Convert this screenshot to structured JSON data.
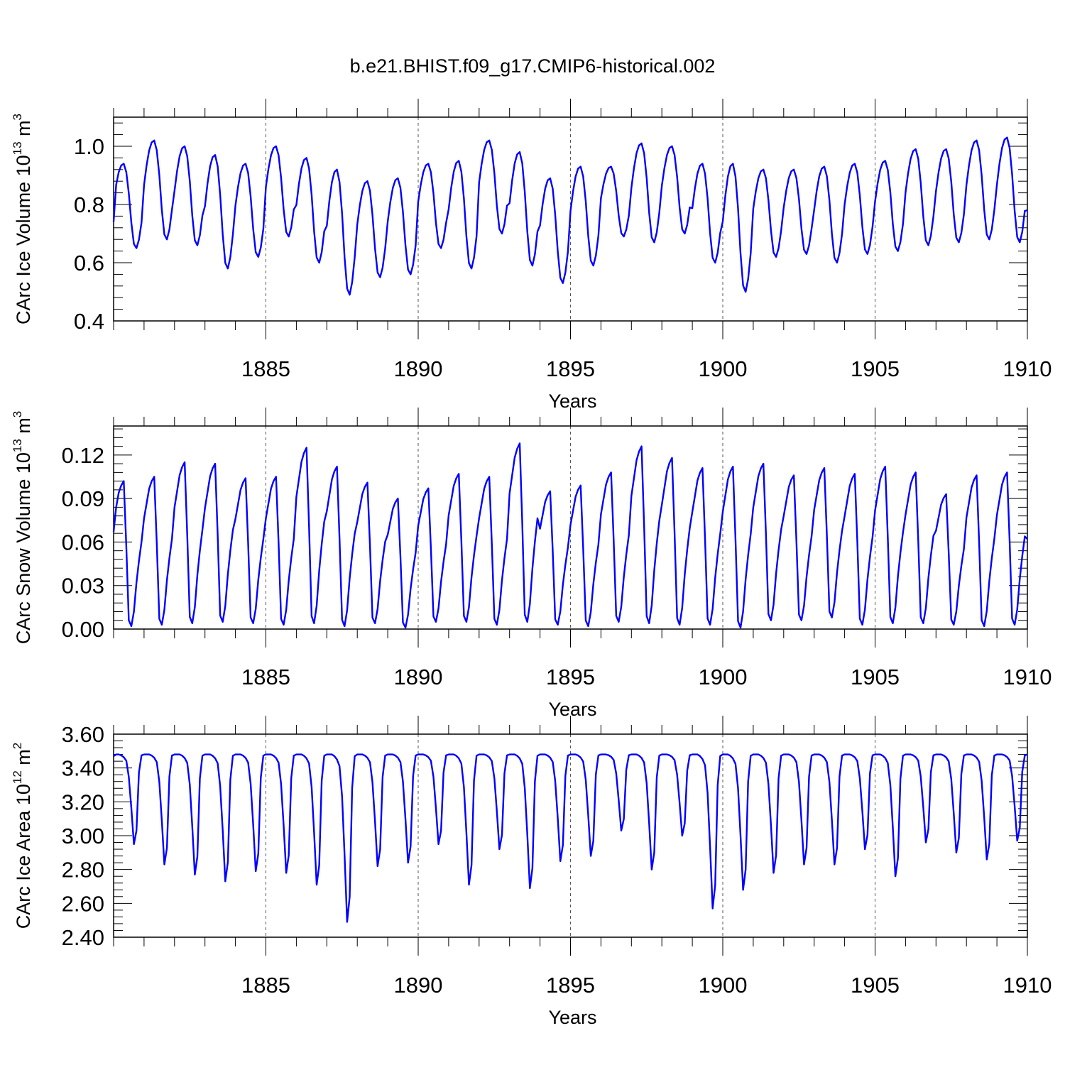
{
  "title": "b.e21.BHIST.f09_g17.CMIP6-historical.002",
  "colors": {
    "series": "#0000ff",
    "axis": "#000000",
    "grid": "#555555"
  },
  "chart_data": [
    {
      "type": "line",
      "id": "ice-volume",
      "ylabel_base": "CArc Ice Volume 10",
      "ylabel_exp": "13",
      "ylabel_unit": " m",
      "ylabel_unit_exp": "3",
      "xlabel": "Years",
      "xlim": [
        1880.0,
        1910.0
      ],
      "ylim": [
        0.4,
        1.1
      ],
      "xticks": [
        1885,
        1890,
        1895,
        1900,
        1905,
        1910
      ],
      "xtick_labels": [
        "1885",
        "1890",
        "1895",
        "1900",
        "1905",
        "1910"
      ],
      "yticks": [
        0.4,
        0.6,
        0.8,
        1.0
      ],
      "ytick_labels": [
        "0.4",
        "0.6",
        "0.8",
        "1.0"
      ],
      "grid": "dashed vertical at major x ticks",
      "series": [
        {
          "name": "CArc Ice Volume",
          "monthly_start": 1880.0,
          "annual_max": [
            0.94,
            1.02,
            1.0,
            0.97,
            0.94,
            1.0,
            0.96,
            0.92,
            0.88,
            0.89,
            0.94,
            0.95,
            1.02,
            0.98,
            0.89,
            0.93,
            0.93,
            1.01,
            1.0,
            0.94,
            0.94,
            0.92,
            0.92,
            0.93,
            0.94,
            0.95,
            0.99,
            0.99,
            1.02,
            1.03
          ],
          "annual_min": [
            0.65,
            0.68,
            0.66,
            0.58,
            0.62,
            0.69,
            0.6,
            0.49,
            0.55,
            0.56,
            0.65,
            0.58,
            0.7,
            0.59,
            0.53,
            0.59,
            0.69,
            0.67,
            0.7,
            0.6,
            0.5,
            0.62,
            0.63,
            0.6,
            0.63,
            0.64,
            0.66,
            0.67,
            0.68,
            0.67
          ],
          "start_value": 0.74,
          "end_value": 0.78
        }
      ]
    },
    {
      "type": "line",
      "id": "snow-volume",
      "ylabel_base": "CArc Snow Volume 10",
      "ylabel_exp": "13",
      "ylabel_unit": " m",
      "ylabel_unit_exp": "3",
      "xlabel": "Years",
      "xlim": [
        1880.0,
        1910.0
      ],
      "ylim": [
        0.0,
        0.14
      ],
      "xticks": [
        1885,
        1890,
        1895,
        1900,
        1905,
        1910
      ],
      "xtick_labels": [
        "1885",
        "1890",
        "1895",
        "1900",
        "1905",
        "1910"
      ],
      "yticks": [
        0.0,
        0.03,
        0.06,
        0.09,
        0.12
      ],
      "ytick_labels": [
        "0.00",
        "0.03",
        "0.06",
        "0.09",
        "0.12"
      ],
      "grid": "dashed vertical at major x ticks",
      "series": [
        {
          "name": "CArc Snow Volume",
          "monthly_start": 1880.0,
          "annual_max": [
            0.102,
            0.105,
            0.115,
            0.114,
            0.104,
            0.105,
            0.125,
            0.112,
            0.101,
            0.09,
            0.097,
            0.107,
            0.105,
            0.128,
            0.095,
            0.099,
            0.108,
            0.126,
            0.118,
            0.111,
            0.112,
            0.114,
            0.106,
            0.111,
            0.107,
            0.112,
            0.108,
            0.093,
            0.106,
            0.108
          ],
          "annual_min": [
            0.002,
            0.003,
            0.004,
            0.005,
            0.004,
            0.003,
            0.004,
            0.002,
            0.004,
            0.001,
            0.005,
            0.005,
            0.003,
            0.005,
            0.003,
            0.002,
            0.005,
            0.004,
            0.003,
            0.003,
            0.001,
            0.006,
            0.006,
            0.008,
            0.003,
            0.004,
            0.004,
            0.003,
            0.002,
            0.003
          ],
          "start_value": 0.067,
          "end_value": 0.062
        }
      ]
    },
    {
      "type": "line",
      "id": "ice-area",
      "ylabel_base": "CArc Ice Area 10",
      "ylabel_exp": "12",
      "ylabel_unit": " m",
      "ylabel_unit_exp": "2",
      "xlabel": "Years",
      "xlim": [
        1880.0,
        1910.0
      ],
      "ylim": [
        2.4,
        3.6
      ],
      "xticks": [
        1885,
        1890,
        1895,
        1900,
        1905,
        1910
      ],
      "xtick_labels": [
        "1885",
        "1890",
        "1895",
        "1900",
        "1905",
        "1910"
      ],
      "yticks": [
        2.4,
        2.6,
        2.8,
        3.0,
        3.2,
        3.4,
        3.6
      ],
      "ytick_labels": [
        "2.40",
        "2.60",
        "2.80",
        "3.00",
        "3.20",
        "3.40",
        "3.60"
      ],
      "grid": "dashed vertical at major x ticks",
      "series": [
        {
          "name": "CArc Ice Area",
          "monthly_start": 1880.0,
          "annual_max": [
            3.48,
            3.48,
            3.48,
            3.48,
            3.48,
            3.48,
            3.48,
            3.48,
            3.48,
            3.48,
            3.48,
            3.48,
            3.48,
            3.48,
            3.48,
            3.48,
            3.48,
            3.48,
            3.48,
            3.48,
            3.48,
            3.48,
            3.48,
            3.48,
            3.48,
            3.48,
            3.48,
            3.48,
            3.48,
            3.48
          ],
          "annual_min": [
            2.95,
            2.83,
            2.77,
            2.73,
            2.79,
            2.78,
            2.71,
            2.49,
            2.82,
            2.84,
            2.95,
            2.71,
            2.92,
            2.69,
            2.85,
            2.88,
            3.03,
            2.8,
            3.0,
            2.57,
            2.68,
            2.78,
            2.83,
            2.83,
            2.92,
            2.76,
            2.96,
            2.9,
            2.86,
            2.97
          ],
          "start_value": 3.47,
          "end_value": 3.48
        }
      ]
    }
  ]
}
